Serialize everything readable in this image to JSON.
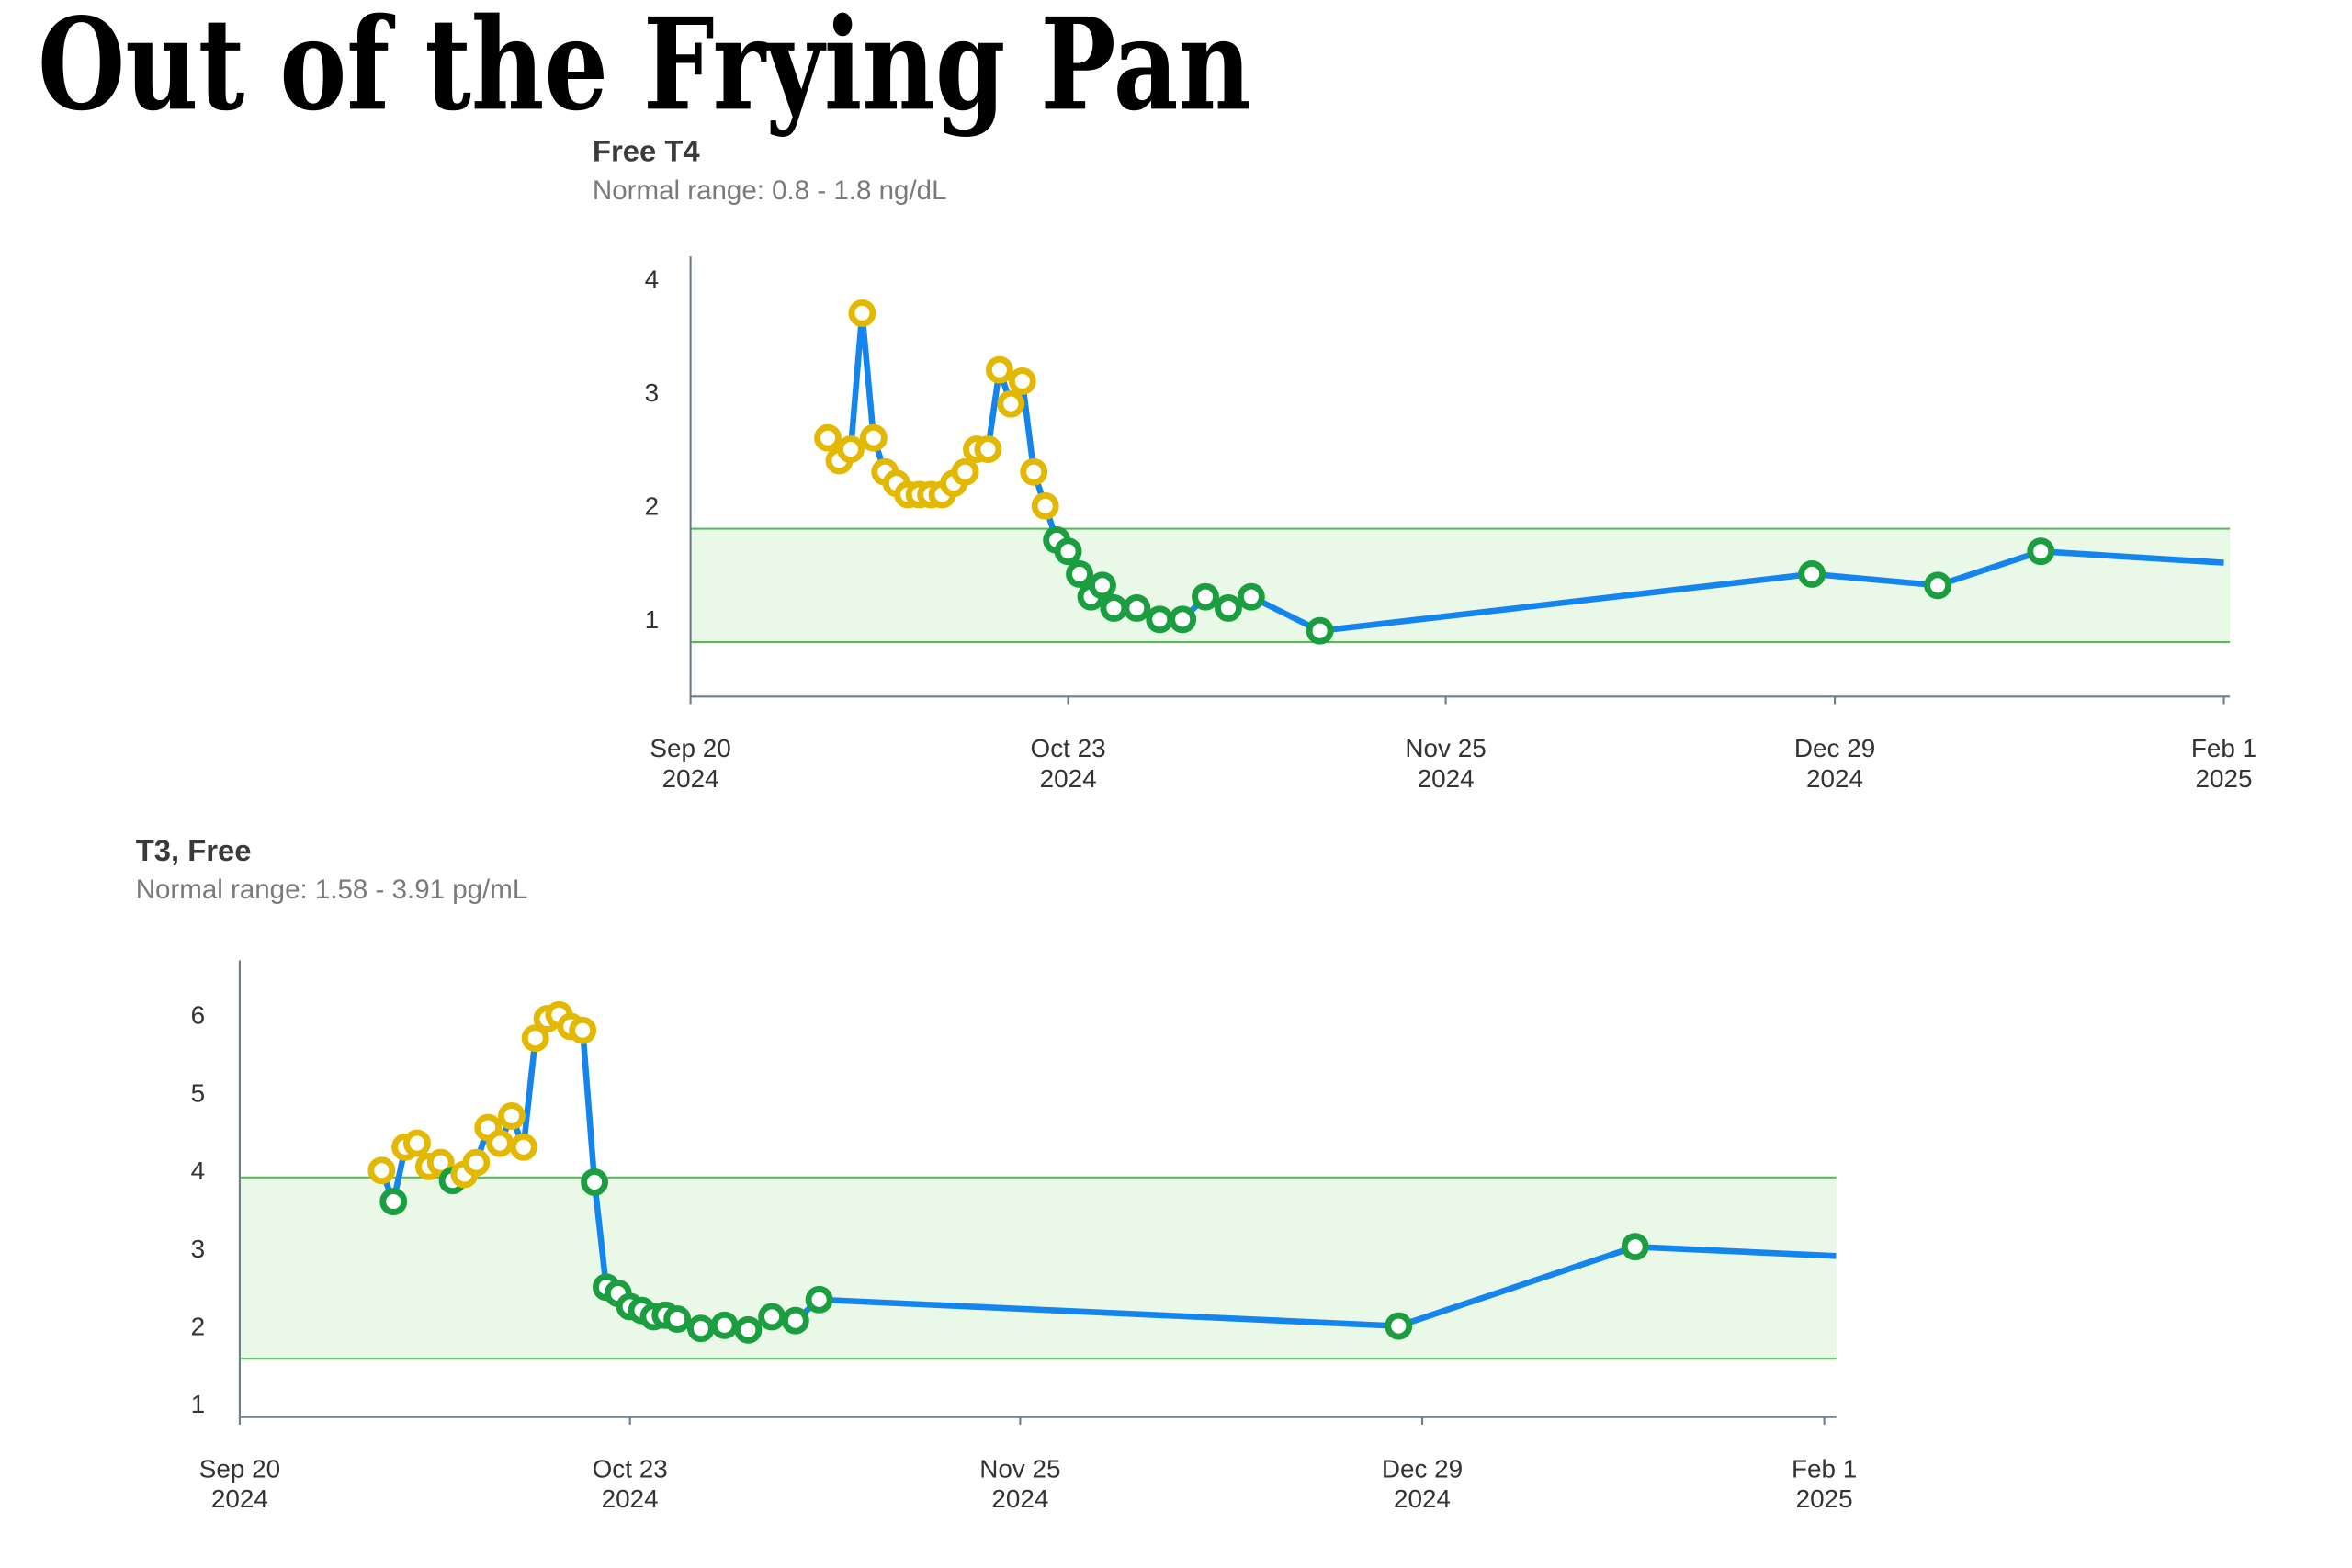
{
  "page_title": "Out of the Frying Pan",
  "colors": {
    "line": "#1585ee",
    "in_range": "#1a9e3f",
    "out_of_range": "#e2b800",
    "band": "#eaf8e8",
    "band_edge": "#5cb85c",
    "axis": "#6b7f8c"
  },
  "chart_data": [
    {
      "type": "line",
      "title": "Free T4",
      "subtitle": "Normal range: 0.8 - 1.8 ng/dL",
      "normal_range": [
        0.8,
        1.8
      ],
      "ylim": [
        0.32,
        4.2
      ],
      "yticks": [
        "1",
        "2",
        "3",
        "4"
      ],
      "xlim": [
        "2024-09-20",
        "2025-02-01"
      ],
      "xticks": [
        {
          "date": "2024-09-20",
          "line1": "Sep 20",
          "line2": "2024"
        },
        {
          "date": "2024-10-23",
          "line1": "Oct 23",
          "line2": "2024"
        },
        {
          "date": "2024-11-25",
          "line1": "Nov 25",
          "line2": "2024"
        },
        {
          "date": "2024-12-29",
          "line1": "Dec 29",
          "line2": "2024"
        },
        {
          "date": "2025-02-01",
          "line1": "Feb 1",
          "line2": "2025"
        }
      ],
      "last_point_marker_hidden": true,
      "points": [
        [
          "2024-10-02",
          2.6
        ],
        [
          "2024-10-03",
          2.4
        ],
        [
          "2024-10-04",
          2.5
        ],
        [
          "2024-10-05",
          3.7
        ],
        [
          "2024-10-06",
          2.6
        ],
        [
          "2024-10-07",
          2.3
        ],
        [
          "2024-10-08",
          2.2
        ],
        [
          "2024-10-09",
          2.1
        ],
        [
          "2024-10-10",
          2.1
        ],
        [
          "2024-10-11",
          2.1
        ],
        [
          "2024-10-12",
          2.1
        ],
        [
          "2024-10-13",
          2.2
        ],
        [
          "2024-10-14",
          2.3
        ],
        [
          "2024-10-15",
          2.5
        ],
        [
          "2024-10-16",
          2.5
        ],
        [
          "2024-10-17",
          3.2
        ],
        [
          "2024-10-18",
          2.9
        ],
        [
          "2024-10-19",
          3.1
        ],
        [
          "2024-10-20",
          2.3
        ],
        [
          "2024-10-21",
          2.0
        ],
        [
          "2024-10-22",
          1.7
        ],
        [
          "2024-10-23",
          1.6
        ],
        [
          "2024-10-24",
          1.4
        ],
        [
          "2024-10-25",
          1.2
        ],
        [
          "2024-10-26",
          1.3
        ],
        [
          "2024-10-27",
          1.1
        ],
        [
          "2024-10-29",
          1.1
        ],
        [
          "2024-10-31",
          1.0
        ],
        [
          "2024-11-02",
          1.0
        ],
        [
          "2024-11-04",
          1.2
        ],
        [
          "2024-11-06",
          1.1
        ],
        [
          "2024-11-08",
          1.2
        ],
        [
          "2024-11-14",
          0.9
        ],
        [
          "2024-12-27",
          1.4
        ],
        [
          "2025-01-07",
          1.3
        ],
        [
          "2025-01-16",
          1.6
        ],
        [
          "2025-02-01",
          1.5
        ]
      ]
    },
    {
      "type": "line",
      "title": "T3, Free",
      "subtitle": "Normal range: 1.58 - 3.91 pg/mL",
      "normal_range": [
        1.58,
        3.91
      ],
      "ylim": [
        0.83,
        6.7
      ],
      "yticks": [
        "1",
        "2",
        "3",
        "4",
        "5",
        "6"
      ],
      "xlim": [
        "2024-09-20",
        "2025-02-01"
      ],
      "xticks": [
        {
          "date": "2024-09-20",
          "line1": "Sep 20",
          "line2": "2024"
        },
        {
          "date": "2024-10-23",
          "line1": "Oct 23",
          "line2": "2024"
        },
        {
          "date": "2024-11-25",
          "line1": "Nov 25",
          "line2": "2024"
        },
        {
          "date": "2024-12-29",
          "line1": "Dec 29",
          "line2": "2024"
        },
        {
          "date": "2025-02-01",
          "line1": "Feb 1",
          "line2": "2025"
        }
      ],
      "last_point_marker_hidden": true,
      "points": [
        [
          "2024-10-02",
          4.0
        ],
        [
          "2024-10-03",
          3.6
        ],
        [
          "2024-10-04",
          4.3
        ],
        [
          "2024-10-05",
          4.35
        ],
        [
          "2024-10-06",
          4.05
        ],
        [
          "2024-10-07",
          4.1
        ],
        [
          "2024-10-08",
          3.87
        ],
        [
          "2024-10-09",
          3.95
        ],
        [
          "2024-10-10",
          4.1
        ],
        [
          "2024-10-11",
          4.55
        ],
        [
          "2024-10-12",
          4.35
        ],
        [
          "2024-10-13",
          4.7
        ],
        [
          "2024-10-14",
          4.3
        ],
        [
          "2024-10-15",
          5.7
        ],
        [
          "2024-10-16",
          5.95
        ],
        [
          "2024-10-17",
          6.0
        ],
        [
          "2024-10-18",
          5.85
        ],
        [
          "2024-10-19",
          5.8
        ],
        [
          "2024-10-20",
          3.85
        ],
        [
          "2024-10-21",
          2.5
        ],
        [
          "2024-10-22",
          2.42
        ],
        [
          "2024-10-23",
          2.25
        ],
        [
          "2024-10-24",
          2.2
        ],
        [
          "2024-10-25",
          2.12
        ],
        [
          "2024-10-26",
          2.14
        ],
        [
          "2024-10-27",
          2.09
        ],
        [
          "2024-10-29",
          1.97
        ],
        [
          "2024-10-31",
          2.01
        ],
        [
          "2024-11-02",
          1.95
        ],
        [
          "2024-11-04",
          2.12
        ],
        [
          "2024-11-06",
          2.07
        ],
        [
          "2024-11-08",
          2.34
        ],
        [
          "2024-12-27",
          2.0
        ],
        [
          "2025-01-16",
          3.02
        ],
        [
          "2025-02-02",
          2.9
        ]
      ]
    }
  ]
}
